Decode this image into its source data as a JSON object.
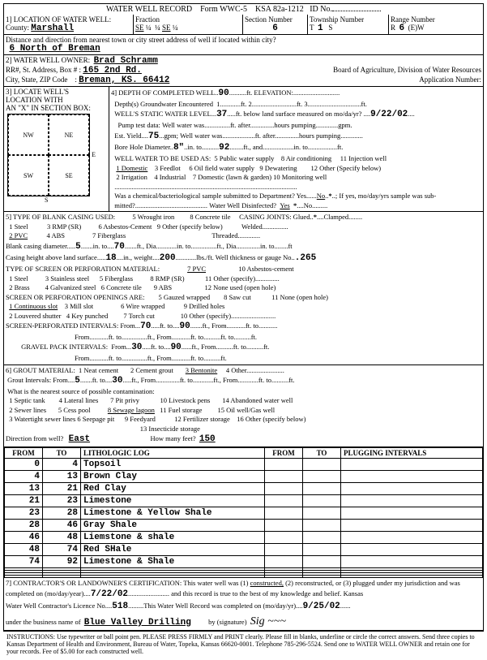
{
  "header": {
    "title": "WATER WELL RECORD",
    "form": "Form WWC-5",
    "ksa": "KSA 82a-1212",
    "idno": "ID No."
  },
  "loc": {
    "county": "Marshall",
    "fraction": {
      "a": "SE",
      "b": "¼",
      "c": "¼",
      "d": "SE",
      "e": "¼"
    },
    "section": "6",
    "township_t": "1",
    "township_s": "S",
    "range_r": "6",
    "range_ew": "(E)W",
    "distance": "6 North of Breman"
  },
  "owner": {
    "name": "Brad Schramm",
    "addr1": "165 2nd Rd.",
    "addr2": "Breman, KS. 66412",
    "board": "Board of Agriculture, Division of Water Resources",
    "appno": "Application Number:"
  },
  "depth": {
    "completed": "90",
    "elevation": "",
    "gw_depth": "",
    "gw_ft": "",
    "gw_ft2": "",
    "static": "37",
    "date": "9/22/02",
    "pump_date": "",
    "pump_hours": "",
    "pump_gpm": "",
    "yield": "75",
    "wellwater_after": "",
    "pumping_hours": "",
    "bore_dia": "8\"",
    "bore_in": "",
    "bore_to": "92",
    "uses": [
      "1 Domestic",
      "2 Irrigation",
      "3 Feedlot",
      "4 Industrial",
      "5 Public water supply",
      "6 Oil field water supply",
      "7 Domestic (lawn & garden)",
      "8 Air conditioning",
      "9 Dewatering",
      "10 Monitoring well",
      "11 Injection well",
      "12 Other (Specify below)"
    ],
    "chem_yes": "No",
    "chem_star": "*",
    "disinfect": "Yes",
    "disinfect_star": "*",
    "disinfect_no": "No"
  },
  "casing": {
    "types": [
      "1 Steel",
      "2 PVC",
      "3 RMP (SR)",
      "4 ABS",
      "5 Wrought iron",
      "6 Asbestos-Cement",
      "7 Fiberglass",
      "8 Concrete tile",
      "9 Other (specify below)"
    ],
    "joints": [
      "Glued,",
      "*",
      "Clamped",
      "Welded",
      "Threaded"
    ],
    "blank_dia": "5",
    "blank_to": "70",
    "blank_ft_dia": "",
    "blank_in2": "",
    "blank_to2": "",
    "blank_ft_dia2": "",
    "height": "18",
    "weight": "200",
    "gauge": ".265",
    "screen_mat": [
      "1 Steel",
      "2 Brass",
      "3 Stainless steel",
      "4 Galvanized steel",
      "5 Fiberglass",
      "6 Concrete tile",
      "7 PVC",
      "8 RMP (SR)",
      "9 ABS",
      "10 Asbestos-cement",
      "11 Other (specify)",
      "12 None used (open hole)"
    ],
    "openings": [
      "1 Continuous slot",
      "2 Louvered shutter",
      "3 Mill slot",
      "4 Key punched",
      "5 Gauzed wrapped",
      "6 Wire wrapped",
      "7 Torch cut",
      "8 Saw cut",
      "9 Drilled holes",
      "10 Other (specify)",
      "11 None (open hole)"
    ],
    "perf_from": "70",
    "perf_to": "90",
    "gravel_from": "30",
    "gravel_to": "90"
  },
  "grout": {
    "materials": [
      "1 Neat cement",
      "2 Cement grout",
      "3 Bentonite",
      "4 Other"
    ],
    "int_from": "5",
    "int_to": "30",
    "contam": [
      "1 Septic tank",
      "2 Sewer lines",
      "3 Watertight sewer lines",
      "4 Lateral lines",
      "5 Cess pool",
      "6 Seepage pit",
      "7 Pit privy",
      "8 Sewage lagoon",
      "9 Feedyard",
      "10 Livestock pens",
      "11 Fuel storage",
      "12 Fertilizer storage",
      "13 Insecticide storage",
      "14 Abandoned water well",
      "15 Oil well/Gas well",
      "16 Other (specify below)"
    ],
    "direction": "East",
    "feet": "150"
  },
  "log": {
    "cols": [
      "FROM",
      "TO",
      "LITHOLOGIC LOG",
      "FROM",
      "TO",
      "PLUGGING INTERVALS"
    ],
    "rows": [
      [
        "0",
        "4",
        "Topsoil",
        "",
        "",
        ""
      ],
      [
        "4",
        "13",
        "Brown Clay",
        "",
        "",
        ""
      ],
      [
        "13",
        "21",
        "Red Clay",
        "",
        "",
        ""
      ],
      [
        "21",
        "23",
        "Limestone",
        "",
        "",
        ""
      ],
      [
        "23",
        "28",
        "Limestone & Yellow Shale",
        "",
        "",
        ""
      ],
      [
        "28",
        "46",
        "Gray Shale",
        "",
        "",
        ""
      ],
      [
        "46",
        "48",
        "Liemstone & shale",
        "",
        "",
        ""
      ],
      [
        "48",
        "74",
        "Red SHale",
        "",
        "",
        ""
      ],
      [
        "74",
        "92",
        "Limestone & Shale",
        "",
        "",
        ""
      ],
      [
        "",
        "",
        "",
        "",
        "",
        ""
      ],
      [
        "",
        "",
        "",
        "",
        "",
        ""
      ],
      [
        "",
        "",
        "",
        "",
        "",
        ""
      ],
      [
        "",
        "",
        "",
        "",
        "",
        ""
      ]
    ]
  },
  "cert": {
    "text1": "CONTRACTOR'S OR LANDOWNER'S CERTIFICATION: This water well was (1)",
    "u1": "constructed,",
    "text2": "(2) reconstructed, or (3) plugged under my jurisdiction and was",
    "completed_on": "7/22/02",
    "text3": "and this record is true to the best of my knowledge and belief. Kansas",
    "licence": "518",
    "record_on": "9/25/02",
    "business": "Blue Valley Drilling"
  },
  "instr": "INSTRUCTIONS: Use typewriter or ball point pen. PLEASE PRESS FIRMLY and PRINT clearly. Please fill in blanks, underline or circle the correct answers. Send three copies to Kansas Department of Health and Environment, Bureau of Water, Topeka, Kansas 66620-0001. Telephone 785-296-5524. Send one to WATER WELL OWNER and retain one for your records. Fee of $5.00 for each constructed well."
}
